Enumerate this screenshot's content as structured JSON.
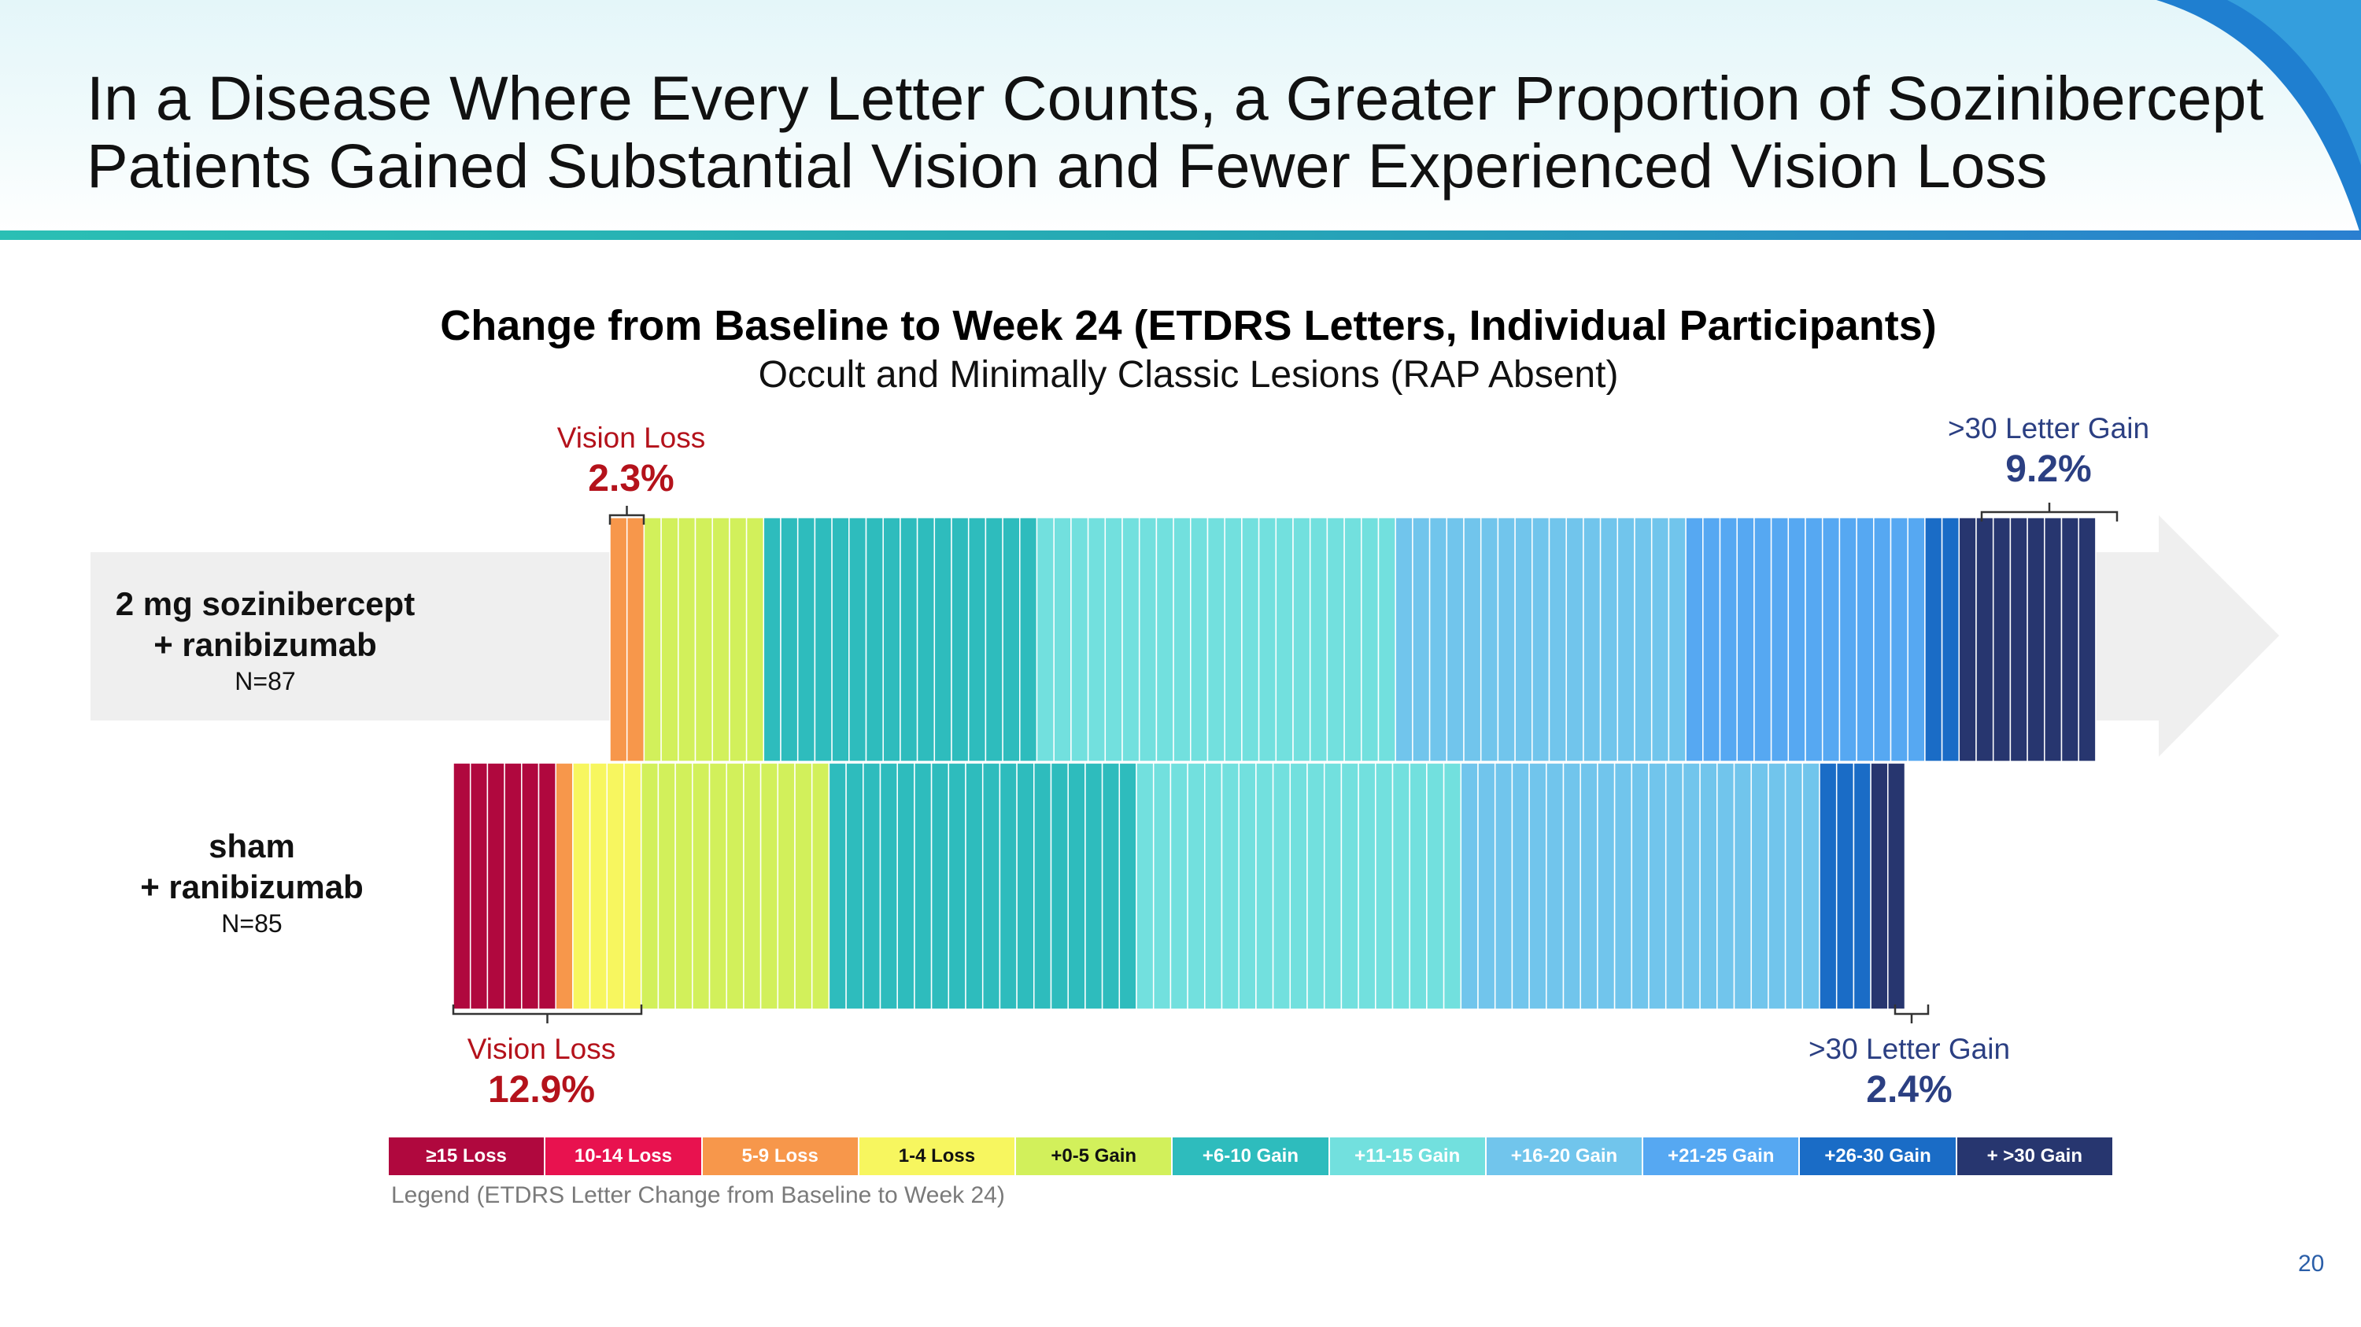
{
  "slide": {
    "title_line1": "In a Disease Where Every Letter Counts, a Greater Proportion of Sozinibercept",
    "title_line2": "Patients Gained Substantial Vision and Fewer Experienced Vision Loss",
    "page_number": "20"
  },
  "colors": {
    "ge15_loss": "#b0083e",
    "10_14_loss": "#e8124f",
    "5_9_loss": "#f7974b",
    "1_4_loss": "#f7f65f",
    "0_5_gain": "#d2f05b",
    "6_10_gain": "#2ebcbd",
    "11_15_gain": "#72e0de",
    "16_20_gain": "#71c5ec",
    "21_25_gain": "#56a8f2",
    "26_30_gain": "#1a6cc6",
    "gt30_gain": "#27366f"
  },
  "chart_data": {
    "type": "bar",
    "title": "Change from Baseline to Week 24 (ETDRS Letters, Individual Participants)",
    "subtitle": "Occult and Minimally Classic Lesions (RAP Absent)",
    "categories": [
      "≥15 Loss",
      "10-14 Loss",
      "5-9 Loss",
      "1-4 Loss",
      "+0-5 Gain",
      "+6-10 Gain",
      "+11-15 Gain",
      "+16-20 Gain",
      "+21-25 Gain",
      "+26-30 Gain",
      "+ >30 Gain"
    ],
    "series": [
      {
        "name": "2 mg sozinibercept + ranibizumab",
        "label_line1": "2 mg sozinibercept",
        "label_line2": "+ ranibizumab",
        "n_label": "N=87",
        "values": [
          0,
          0,
          2,
          0,
          7,
          16,
          21,
          17,
          14,
          2,
          8
        ]
      },
      {
        "name": "sham + ranibizumab",
        "label_line1": "sham",
        "label_line2": "+ ranibizumab",
        "n_label": "N=85",
        "values": [
          6,
          0,
          1,
          4,
          11,
          18,
          19,
          21,
          0,
          3,
          2
        ]
      }
    ],
    "annotations": {
      "top_loss_label": "Vision Loss",
      "top_loss_pct": "2.3%",
      "top_gain_label": ">30 Letter Gain",
      "top_gain_pct": "9.2%",
      "bottom_loss_label": "Vision Loss",
      "bottom_loss_pct": "12.9%",
      "bottom_gain_label": ">30 Letter Gain",
      "bottom_gain_pct": "2.4%"
    },
    "legend_caption": "Legend (ETDRS Letter Change from Baseline to Week 24)"
  }
}
